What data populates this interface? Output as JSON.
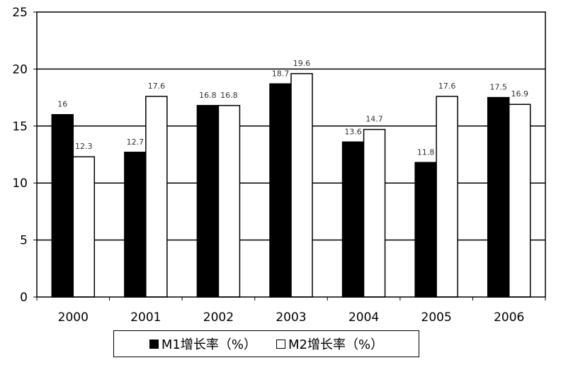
{
  "chart_data": {
    "type": "bar",
    "categories": [
      "2000",
      "2001",
      "2002",
      "2003",
      "2004",
      "2005",
      "2006"
    ],
    "series": [
      {
        "name": "M1增长率（%）",
        "values": [
          16,
          12.7,
          16.8,
          18.7,
          13.6,
          11.8,
          17.5
        ],
        "color": "#000000"
      },
      {
        "name": "M2增长率（%）",
        "values": [
          12.3,
          17.6,
          16.8,
          19.6,
          14.7,
          17.6,
          16.9
        ],
        "color": "#ffffff"
      }
    ],
    "value_labels": [
      [
        "16",
        "12.7",
        "16.8",
        "18.7",
        "13.6",
        "11.8",
        "17.5"
      ],
      [
        "12.3",
        "17.6",
        "16.8",
        "19.6",
        "14.7",
        "17.6",
        "16.9"
      ]
    ],
    "yticks": [
      "0",
      "5",
      "10",
      "15",
      "20",
      "25"
    ],
    "ylim": [
      0,
      25
    ],
    "grid": true,
    "legend_position": "bottom-center",
    "title": "",
    "xlabel": "",
    "ylabel": ""
  }
}
